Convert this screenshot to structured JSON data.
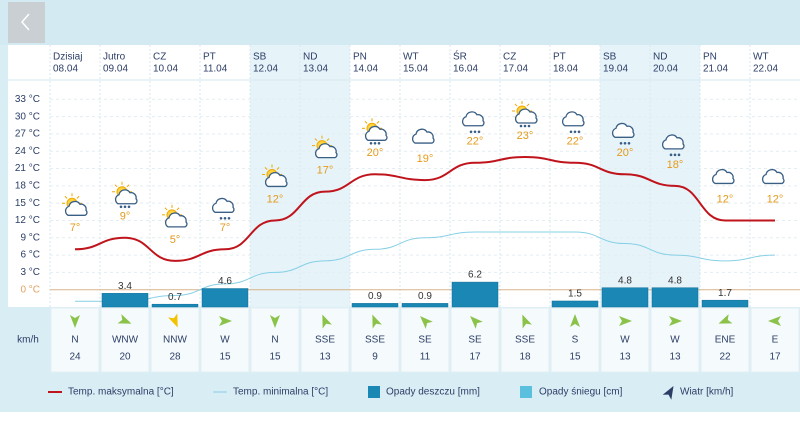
{
  "chart_data": {
    "type": "line",
    "categories": [
      "Dzisiaj",
      "Jutro",
      "CZ",
      "PT",
      "SB",
      "ND",
      "PN",
      "WT",
      "ŚR",
      "CZ",
      "PT",
      "SB",
      "ND",
      "PN",
      "WT"
    ],
    "dates": [
      "08.04",
      "09.04",
      "10.04",
      "11.04",
      "12.04",
      "13.04",
      "14.04",
      "15.04",
      "16.04",
      "17.04",
      "18.04",
      "19.04",
      "20.04",
      "21.04",
      "22.04"
    ],
    "weekend": [
      false,
      false,
      false,
      false,
      true,
      true,
      false,
      false,
      false,
      false,
      false,
      true,
      true,
      false,
      false
    ],
    "conditions": [
      "sun-cloud",
      "sun-cloud-rain",
      "sun-cloud",
      "cloud-rain",
      "sun-cloud",
      "sun-cloud",
      "sun-cloud-rain",
      "cloud",
      "cloud-rain",
      "sun-cloud-rain",
      "cloud-rain",
      "cloud-rain",
      "cloud-rain",
      "cloud",
      "cloud"
    ],
    "ylim": [
      -3,
      36
    ],
    "yticks": [
      {
        "value": 0,
        "label": "0 °C"
      },
      {
        "value": 3,
        "label": "3 °C"
      },
      {
        "value": 6,
        "label": "6 °C"
      },
      {
        "value": 9,
        "label": "9 °C"
      },
      {
        "value": 12,
        "label": "12 °C"
      },
      {
        "value": 15,
        "label": "15 °C"
      },
      {
        "value": 18,
        "label": "18 °C"
      },
      {
        "value": 21,
        "label": "21 °C"
      },
      {
        "value": 24,
        "label": "24 °C"
      },
      {
        "value": 27,
        "label": "27 °C"
      },
      {
        "value": 30,
        "label": "30 °C"
      },
      {
        "value": 33,
        "label": "33 °C"
      }
    ],
    "y2lim": [
      0,
      56
    ],
    "grid": true,
    "series": [
      {
        "name": "Temp. maksymalna [°C]",
        "color": "#c0141c",
        "values": [
          7,
          9,
          5,
          7,
          12,
          17,
          20,
          19,
          22,
          23,
          22,
          20,
          18,
          12,
          12
        ],
        "value_labels": [
          "7°",
          "9°",
          "5°",
          "7°",
          "12°",
          "17°",
          "20°",
          "19°",
          "22°",
          "23°",
          "22°",
          "20°",
          "18°",
          "12°",
          "12°"
        ]
      },
      {
        "name": "Temp. minimalna [°C]",
        "color": "#86d0e6",
        "values": [
          -2,
          -2,
          -1,
          1,
          3,
          5,
          7,
          9,
          10,
          10,
          10,
          8,
          6,
          5,
          6
        ]
      },
      {
        "name": "Opady deszczu [mm]",
        "color": "#1a87b5",
        "axis": "y2",
        "values": [
          null,
          3.4,
          0.7,
          4.6,
          null,
          null,
          0.9,
          0.9,
          6.2,
          null,
          1.5,
          4.8,
          4.8,
          1.7,
          null
        ]
      },
      {
        "name": "Opady śniegu [cm]",
        "color": "#5bc0de",
        "axis": "y2",
        "values": [
          null,
          null,
          null,
          null,
          null,
          null,
          null,
          null,
          null,
          null,
          null,
          null,
          null,
          null,
          null
        ]
      }
    ],
    "wind": {
      "name": "Wiatr [km/h]",
      "unit": "km/h",
      "directions": [
        "N",
        "WNW",
        "NNW",
        "W",
        "N",
        "SSE",
        "SSE",
        "SE",
        "SE",
        "SSE",
        "S",
        "W",
        "W",
        "ENE",
        "E"
      ],
      "speeds": [
        24,
        20,
        28,
        15,
        15,
        13,
        9,
        11,
        17,
        18,
        15,
        13,
        13,
        22,
        17
      ],
      "colors": [
        "#8bc34a",
        "#8bc34a",
        "#f2c200",
        "#8bc34a",
        "#8bc34a",
        "#8bc34a",
        "#8bc34a",
        "#8bc34a",
        "#8bc34a",
        "#8bc34a",
        "#8bc34a",
        "#8bc34a",
        "#8bc34a",
        "#8bc34a",
        "#8bc34a"
      ]
    }
  }
}
